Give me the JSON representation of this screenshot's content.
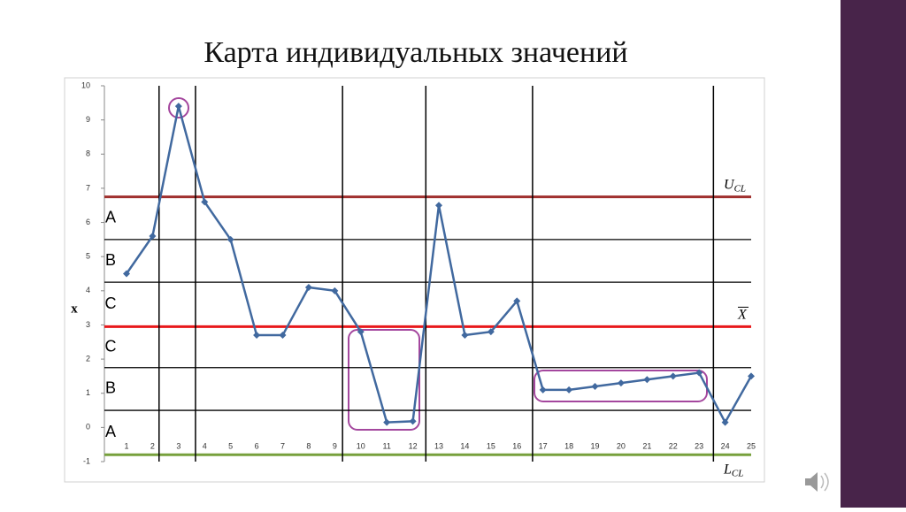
{
  "chart_data": {
    "type": "line",
    "title": "Карта индивидуальных значений",
    "y_label": "x",
    "x": [
      1,
      2,
      3,
      4,
      5,
      6,
      7,
      8,
      9,
      10,
      11,
      12,
      13,
      14,
      15,
      16,
      17,
      18,
      19,
      20,
      21,
      22,
      23,
      24,
      25
    ],
    "series": [
      {
        "color": "#41699f",
        "values": [
          4.5,
          5.6,
          9.4,
          6.6,
          5.5,
          2.7,
          2.7,
          4.1,
          4.0,
          2.8,
          0.15,
          0.18,
          6.5,
          2.7,
          2.8,
          3.7,
          1.1,
          1.1,
          1.2,
          1.3,
          1.4,
          1.5,
          1.6,
          0.15,
          1.5
        ]
      }
    ],
    "xlim": [
      0.15,
      25
    ],
    "xticks": [
      1,
      2,
      3,
      4,
      5,
      6,
      7,
      8,
      9,
      10,
      11,
      12,
      13,
      14,
      15,
      16,
      17,
      18,
      19,
      20,
      21,
      22,
      23,
      24,
      25
    ],
    "ylim": [
      -1,
      10
    ],
    "yticks": [
      -1,
      0,
      1,
      2,
      3,
      4,
      5,
      6,
      7,
      8,
      9,
      10
    ],
    "ucl": {
      "value": 6.75,
      "label": "U",
      "sub": "CL",
      "color": "#a0302e"
    },
    "mean": {
      "value": 2.95,
      "label": "X",
      "color": "#e8191b"
    },
    "lcl": {
      "value": -0.8,
      "label": "L",
      "sub": "CL",
      "color": "#77a03c"
    },
    "zone_lines": [
      5.5,
      4.25,
      1.75,
      0.5
    ],
    "zones": [
      "A",
      "B",
      "C",
      "C",
      "B",
      "A"
    ],
    "vertical_lines": [
      2.25,
      3.65,
      9.3,
      12.5,
      16.6,
      23.55
    ]
  }
}
